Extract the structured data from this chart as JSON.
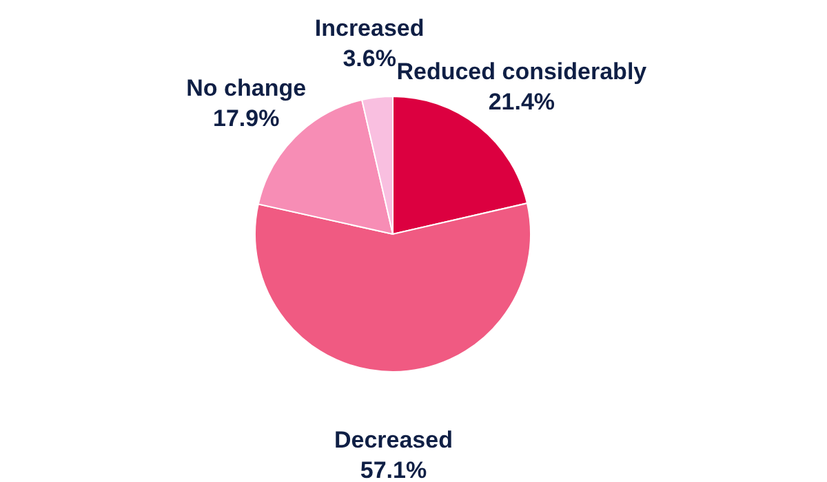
{
  "chart_data": {
    "type": "pie",
    "categories": [
      "Reduced considerably",
      "Decreased",
      "No change",
      "Increased"
    ],
    "values": [
      21.4,
      57.1,
      17.9,
      3.6
    ],
    "value_labels": [
      "21.4%",
      "57.1%",
      "17.9%",
      "3.6%"
    ],
    "colors": [
      "#dc0040",
      "#f05a82",
      "#f78db5",
      "#f9bfe0"
    ],
    "legend": false
  }
}
